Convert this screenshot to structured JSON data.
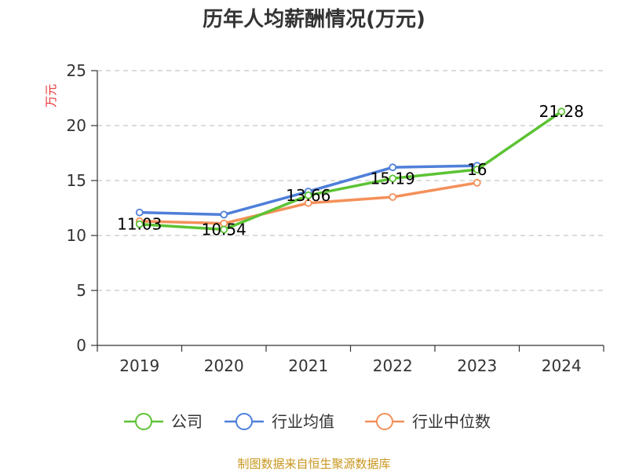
{
  "chart_data": {
    "type": "line",
    "title": "历年人均薪酬情况(万元)",
    "ylabel": "万元",
    "xlabel": "",
    "categories": [
      "2019",
      "2020",
      "2021",
      "2022",
      "2023",
      "2024"
    ],
    "ylim": [
      0,
      25
    ],
    "yticks": [
      "0",
      "5",
      "10",
      "15",
      "20",
      "25"
    ],
    "grid": true,
    "legend_position": "bottom",
    "series": [
      {
        "name": "公司",
        "color": "#5cc334",
        "values": [
          11.03,
          10.54,
          13.66,
          15.19,
          16.0,
          21.28
        ],
        "labels": [
          "11.03",
          "10.54",
          "13.66",
          "15.19",
          "16",
          "21.28"
        ]
      },
      {
        "name": "行业均值",
        "color": "#4e7fd9",
        "values": [
          12.1,
          11.9,
          14.0,
          16.2,
          16.35,
          null
        ]
      },
      {
        "name": "行业中位数",
        "color": "#f4905a",
        "values": [
          11.3,
          11.1,
          12.95,
          13.5,
          14.8,
          null
        ]
      }
    ]
  },
  "source_note": "制图数据来自恒生聚源数据库"
}
